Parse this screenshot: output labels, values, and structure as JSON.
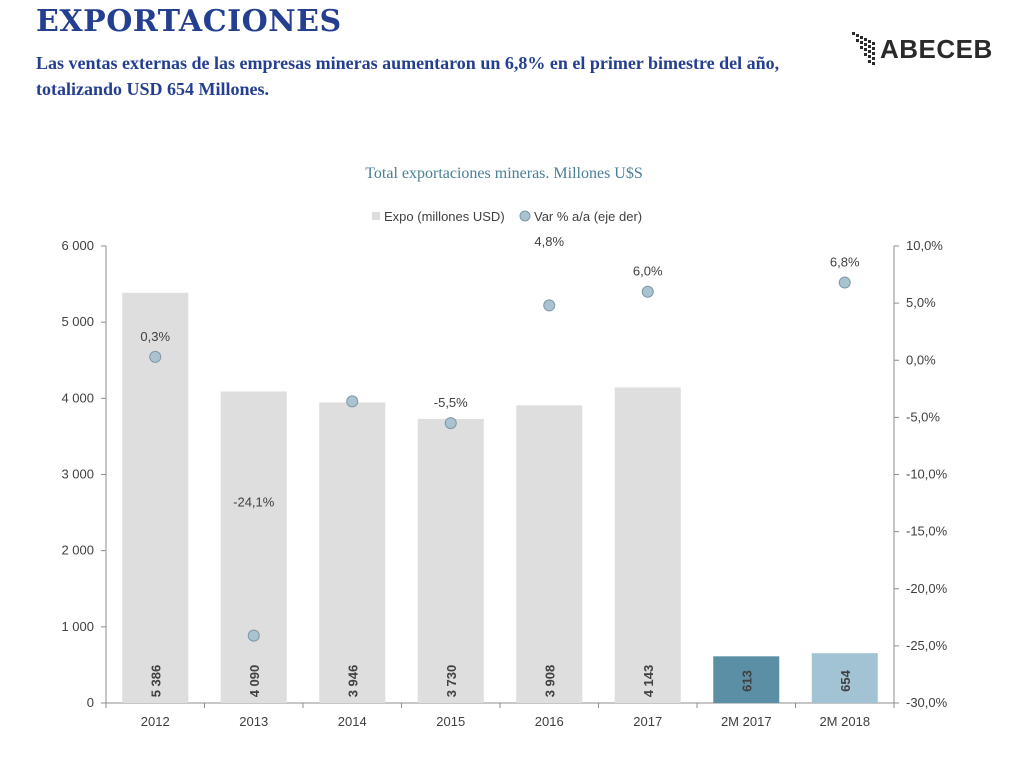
{
  "slide": {
    "title": "EXPORTACIONES",
    "subtitle": "Las ventas externas de las empresas mineras aumentaron un 6,8%  en el primer bimestre del año, totalizando USD 654 Millones.",
    "logo_text": "ABECEB"
  },
  "chart_data": {
    "type": "bar",
    "title": "Total exportaciones mineras. Millones U$S",
    "categories": [
      "2012",
      "2013",
      "2014",
      "2015",
      "2016",
      "2017",
      "2M 2017",
      "2M 2018"
    ],
    "series": [
      {
        "name": "Expo (millones USD)",
        "type": "bar",
        "axis": "left",
        "values": [
          5386,
          4090,
          3946,
          3730,
          3908,
          4143,
          613,
          654
        ],
        "labels": [
          "5 386",
          "4 090",
          "3 946",
          "3 730",
          "3 908",
          "4 143",
          "613",
          "654"
        ],
        "colors": [
          "#dedede",
          "#dedede",
          "#dedede",
          "#dedede",
          "#dedede",
          "#dedede",
          "#5b8fa5",
          "#a2c3d3"
        ]
      },
      {
        "name": "Var % a/a (eje der)",
        "type": "scatter",
        "axis": "right",
        "values": [
          0.3,
          -24.1,
          -3.6,
          -5.5,
          4.8,
          6.0,
          null,
          6.8
        ],
        "labels": [
          "0,3%",
          "-24,1%",
          "",
          "-5,5%",
          "4,8%",
          "6,0%",
          "",
          "6,8%"
        ],
        "marker_color": "#a9c3d1"
      }
    ],
    "yaxis_left": {
      "ylim": [
        0,
        6000
      ],
      "ticks": [
        "0",
        "1 000",
        "2 000",
        "3 000",
        "4 000",
        "5 000",
        "6 000"
      ]
    },
    "yaxis_right": {
      "ylim": [
        -30,
        10
      ],
      "ticks": [
        "-30,0%",
        "-25,0%",
        "-20,0%",
        "-15,0%",
        "-10,0%",
        "-5,0%",
        "0,0%",
        "5,0%",
        "10,0%"
      ]
    },
    "legend": {
      "position": "top",
      "bar_label": "Expo (millones USD)",
      "point_label": "Var % a/a (eje der)"
    },
    "grid": false,
    "colors": {
      "title": "#4a7f96",
      "axis": "#8c8c8c",
      "text": "#404040"
    }
  }
}
